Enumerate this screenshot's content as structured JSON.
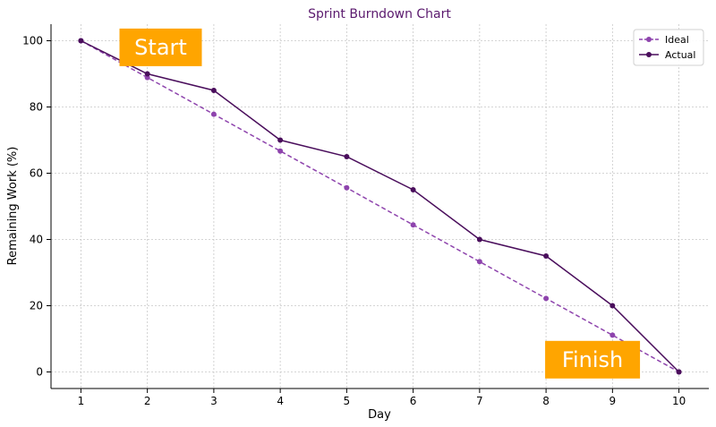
{
  "chart_data": {
    "type": "line",
    "title": "Sprint Burndown Chart",
    "xlabel": "Day",
    "ylabel": "Remaining Work (%)",
    "x": [
      1,
      2,
      3,
      4,
      5,
      6,
      7,
      8,
      9,
      10
    ],
    "xlim": [
      0.55,
      10.45
    ],
    "ylim": [
      -5,
      105
    ],
    "yticks": [
      0,
      20,
      40,
      60,
      80,
      100
    ],
    "grid": true,
    "legend_position": "top-right",
    "series": [
      {
        "name": "Ideal",
        "values": [
          100,
          88.9,
          77.8,
          66.7,
          55.6,
          44.4,
          33.3,
          22.2,
          11.1,
          0
        ],
        "color": "#8e44ad",
        "line_style": "dashed"
      },
      {
        "name": "Actual",
        "values": [
          100,
          90,
          85,
          70,
          65,
          55,
          40,
          35,
          20,
          0
        ],
        "color": "#4a0e5c",
        "line_style": "solid"
      }
    ],
    "annotations": [
      {
        "text": "Start",
        "x": 2.2,
        "y": 98,
        "color": "#ffa500"
      },
      {
        "text": "Finish",
        "x": 8.7,
        "y": 3.7,
        "color": "#ffa500"
      }
    ]
  },
  "colors": {
    "title": "#5b1a6e",
    "grid": "#c8c8c8",
    "axis": "#000000"
  }
}
